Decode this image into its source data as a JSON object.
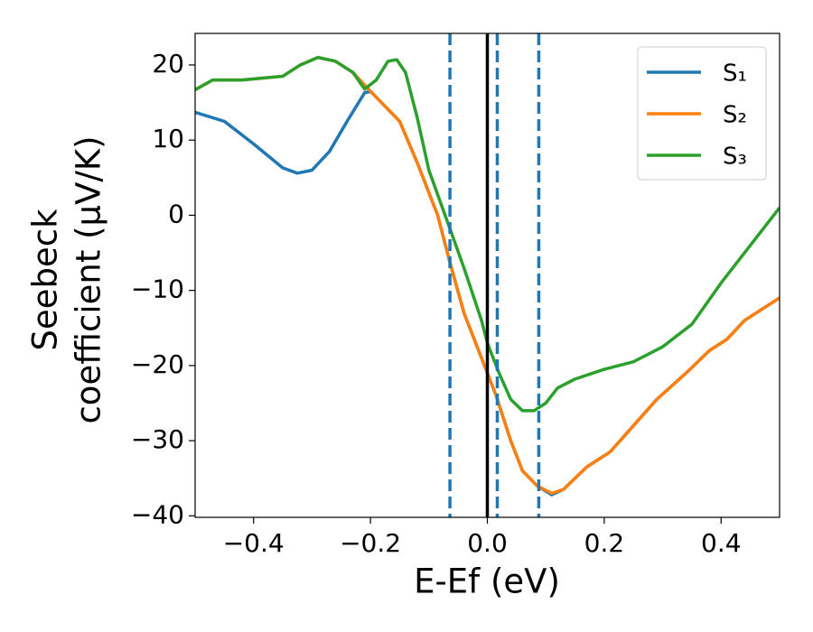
{
  "chart_data": {
    "type": "line",
    "x_label": "E-Ef (eV)",
    "y_label": [
      "Seebeck",
      "coefficient  (μV/K)"
    ],
    "xlim": [
      -0.5,
      0.5
    ],
    "ylim": [
      -40.2,
      24.2
    ],
    "xticks": [
      {
        "value": -0.4,
        "label": "−0.4"
      },
      {
        "value": -0.2,
        "label": "−0.2"
      },
      {
        "value": 0,
        "label": "0.0"
      },
      0.2,
      0.4
    ],
    "yticks": [
      {
        "value": -40,
        "label": "−40"
      },
      {
        "value": -30,
        "label": "−30"
      },
      {
        "value": -20,
        "label": "−20"
      },
      {
        "value": -10,
        "label": "−10"
      },
      0,
      10,
      20
    ],
    "legend": "upper right",
    "series": [
      {
        "name": "S₁",
        "color": "#1f77b4",
        "x": [
          -0.5,
          -0.45,
          -0.4,
          -0.35,
          -0.325,
          -0.3,
          -0.27,
          -0.24,
          -0.21,
          -0.2,
          -0.15,
          -0.12,
          -0.085,
          -0.065,
          -0.04,
          -0.01,
          0.015,
          0.04,
          0.06,
          0.085,
          0.11,
          0.13,
          0.17,
          0.21,
          0.25,
          0.29,
          0.34,
          0.38,
          0.41,
          0.44,
          0.47,
          0.5
        ],
        "values": [
          13.7,
          12.5,
          9.5,
          6.3,
          5.6,
          6,
          8.5,
          12.5,
          16.3,
          16.5,
          12.5,
          7,
          0,
          -6,
          -13,
          -19,
          -24,
          -30,
          -34,
          -36,
          -37.2,
          -36.5,
          -33.5,
          -31.5,
          -28,
          -24.5,
          -21,
          -18,
          -16.5,
          -14,
          -12.5,
          -11
        ]
      },
      {
        "name": "S₂",
        "color": "#ff7f0e",
        "x": [
          -0.5,
          -0.47,
          -0.42,
          -0.35,
          -0.32,
          -0.29,
          -0.26,
          -0.23,
          -0.2,
          -0.15,
          -0.12,
          -0.085,
          -0.065,
          -0.04,
          -0.01,
          0.015,
          0.04,
          0.06,
          0.085,
          0.11,
          0.13,
          0.17,
          0.21,
          0.25,
          0.29,
          0.34,
          0.38,
          0.41,
          0.44,
          0.47,
          0.5
        ],
        "values": [
          16.7,
          18,
          18,
          18.5,
          20,
          21,
          20.5,
          19,
          16.5,
          12.5,
          7,
          0,
          -6,
          -13,
          -19,
          -24,
          -30,
          -34,
          -36,
          -37,
          -36.5,
          -33.5,
          -31.5,
          -28,
          -24.5,
          -21,
          -18,
          -16.5,
          -14,
          -12.5,
          -11
        ]
      },
      {
        "name": "S₃",
        "color": "#2ca02c",
        "x": [
          -0.5,
          -0.47,
          -0.42,
          -0.35,
          -0.32,
          -0.29,
          -0.26,
          -0.23,
          -0.21,
          -0.19,
          -0.17,
          -0.155,
          -0.14,
          -0.12,
          -0.1,
          -0.07,
          -0.04,
          -0.01,
          0,
          0.02,
          0.04,
          0.06,
          0.08,
          0.1,
          0.12,
          0.15,
          0.2,
          0.25,
          0.3,
          0.35,
          0.4,
          0.45,
          0.5
        ],
        "values": [
          16.7,
          18,
          18,
          18.5,
          20,
          21,
          20.5,
          19,
          16.8,
          18,
          20.5,
          20.7,
          19,
          13,
          6,
          -0.5,
          -7,
          -14,
          -17,
          -21,
          -24.5,
          -26,
          -26,
          -25,
          -23,
          -21.8,
          -20.5,
          -19.5,
          -17.5,
          -14.5,
          -9,
          -4,
          1
        ]
      }
    ],
    "vlines": [
      {
        "x": 0,
        "color": "#000000",
        "style": "solid"
      },
      {
        "x": -0.064,
        "color": "#1f77b4",
        "style": "dashed"
      },
      {
        "x": 0.017,
        "color": "#1f77b4",
        "style": "dashed"
      },
      {
        "x": 0.088,
        "color": "#1f77b4",
        "style": "dashed"
      }
    ]
  }
}
